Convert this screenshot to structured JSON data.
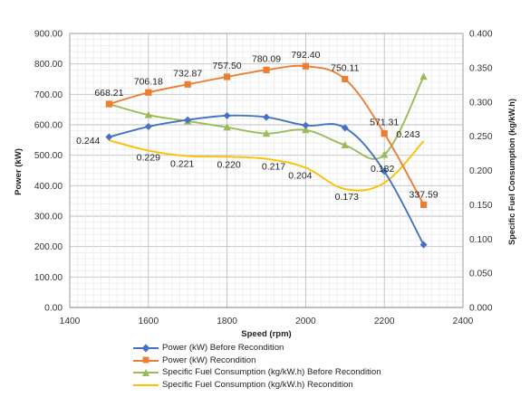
{
  "chart_data": {
    "type": "line",
    "title": "",
    "xlabel": "Speed (rpm)",
    "ylabel": "Power (kW)",
    "y2label": "Specific Fuel Consumption (kg/kW.h)",
    "xlim": [
      1400,
      2400
    ],
    "ylim": [
      0,
      900
    ],
    "y2lim": [
      0,
      0.4
    ],
    "x_ticks": [
      "1400",
      "1600",
      "1800",
      "2000",
      "2200",
      "2400"
    ],
    "y_ticks": [
      "0.00",
      "100.00",
      "200.00",
      "300.00",
      "400.00",
      "500.00",
      "600.00",
      "700.00",
      "800.00",
      "900.00"
    ],
    "y2_ticks": [
      "0.000",
      "0.050",
      "0.100",
      "0.150",
      "0.200",
      "0.250",
      "0.300",
      "0.350",
      "0.400"
    ],
    "grid": true,
    "legend_position": "bottom",
    "series": [
      {
        "name": "Power (kW) Before Recondition",
        "axis": "left",
        "marker": "diamond",
        "color": "#4472C4",
        "x": [
          1500,
          1600,
          1700,
          1800,
          1900,
          2000,
          2100,
          2200,
          2300
        ],
        "values": [
          560,
          594,
          616,
          630,
          625,
          598,
          590,
          447,
          206
        ],
        "labels": []
      },
      {
        "name": "Power (kW) Recondition",
        "axis": "left",
        "marker": "square",
        "color": "#ED7D31",
        "x": [
          1500,
          1600,
          1700,
          1800,
          1900,
          2000,
          2100,
          2200,
          2300
        ],
        "values": [
          668.21,
          706.18,
          732.87,
          757.5,
          780.09,
          792.4,
          750.11,
          571.31,
          337.59
        ],
        "labels": [
          "668.21",
          "706.18",
          "732.87",
          "757.50",
          "780.09",
          "792.40",
          "750.11",
          "571.31",
          "337.59"
        ]
      },
      {
        "name": "Specific Fuel Consumption (kg/kW.h) Before Recondition",
        "axis": "right",
        "marker": "triangle",
        "color": "#9BBB59",
        "x": [
          1500,
          1600,
          1700,
          1800,
          1900,
          2000,
          2100,
          2200,
          2300
        ],
        "values": [
          0.297,
          0.281,
          0.272,
          0.263,
          0.254,
          0.259,
          0.237,
          0.223,
          0.337
        ],
        "labels": []
      },
      {
        "name": "Specific Fuel Consumption (kg/kW.h) Recondition",
        "axis": "right",
        "marker": "none",
        "color": "#FFC000",
        "x": [
          1500,
          1600,
          1700,
          1800,
          1900,
          2000,
          2100,
          2200,
          2300
        ],
        "values": [
          0.244,
          0.229,
          0.221,
          0.22,
          0.217,
          0.204,
          0.173,
          0.182,
          0.243
        ],
        "labels": [
          "0.244",
          "0.229",
          "0.221",
          "0.220",
          "0.217",
          "0.204",
          "0.173",
          "0.182",
          "0.243"
        ]
      }
    ]
  }
}
